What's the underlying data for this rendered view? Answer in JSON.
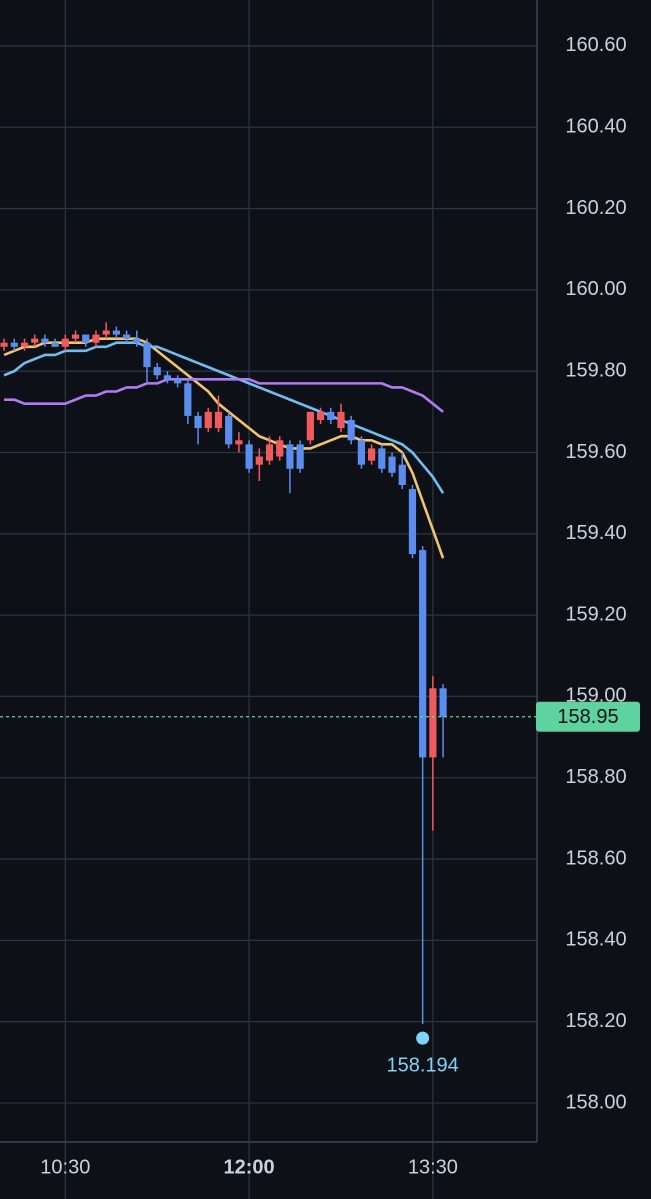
{
  "chart_data": {
    "type": "candlestick",
    "x": [
      "10:00",
      "10:05",
      "10:10",
      "10:15",
      "10:20",
      "10:25",
      "10:30",
      "10:35",
      "10:40",
      "10:45",
      "10:50",
      "10:55",
      "11:00",
      "11:05",
      "11:10",
      "11:15",
      "11:20",
      "11:25",
      "11:30",
      "11:35",
      "11:40",
      "11:45",
      "11:50",
      "11:55",
      "12:00",
      "12:05",
      "12:10",
      "12:15",
      "12:20",
      "12:25",
      "12:30",
      "12:35",
      "12:40",
      "12:45",
      "12:50",
      "12:55",
      "13:00",
      "13:05",
      "13:10",
      "13:15",
      "13:20",
      "13:25",
      "13:30",
      "13:35"
    ],
    "open": [
      159.86,
      159.87,
      159.86,
      159.87,
      159.88,
      159.87,
      159.86,
      159.88,
      159.89,
      159.87,
      159.89,
      159.9,
      159.89,
      159.88,
      159.87,
      159.81,
      159.79,
      159.78,
      159.77,
      159.69,
      159.66,
      159.66,
      159.69,
      159.62,
      159.62,
      159.57,
      159.58,
      159.59,
      159.62,
      159.62,
      159.63,
      159.68,
      159.7,
      159.66,
      159.68,
      159.63,
      159.58,
      159.61,
      159.59,
      159.57,
      159.51,
      159.36,
      158.85,
      159.02
    ],
    "high": [
      159.88,
      159.88,
      159.88,
      159.89,
      159.89,
      159.88,
      159.89,
      159.9,
      159.89,
      159.9,
      159.92,
      159.91,
      159.9,
      159.9,
      159.88,
      159.82,
      159.8,
      159.79,
      159.78,
      159.7,
      159.71,
      159.74,
      159.7,
      159.65,
      159.63,
      159.61,
      159.64,
      159.64,
      159.63,
      159.63,
      159.7,
      159.71,
      159.71,
      159.72,
      159.69,
      159.64,
      159.62,
      159.62,
      159.6,
      159.6,
      159.52,
      159.37,
      159.05,
      159.03
    ],
    "low": [
      159.85,
      159.85,
      159.85,
      159.86,
      159.86,
      159.86,
      159.85,
      159.87,
      159.86,
      159.86,
      159.88,
      159.88,
      159.87,
      159.86,
      159.77,
      159.78,
      159.77,
      159.76,
      159.67,
      159.62,
      159.65,
      159.65,
      159.61,
      159.6,
      159.55,
      159.53,
      159.57,
      159.58,
      159.5,
      159.55,
      159.62,
      159.67,
      159.67,
      159.65,
      159.62,
      159.56,
      159.57,
      159.55,
      159.54,
      159.51,
      159.34,
      158.194,
      158.67,
      158.85
    ],
    "close": [
      159.87,
      159.86,
      159.87,
      159.88,
      159.87,
      159.86,
      159.88,
      159.89,
      159.87,
      159.89,
      159.9,
      159.89,
      159.88,
      159.87,
      159.81,
      159.79,
      159.78,
      159.77,
      159.69,
      159.66,
      159.7,
      159.7,
      159.62,
      159.63,
      159.56,
      159.59,
      159.62,
      159.63,
      159.56,
      159.56,
      159.7,
      159.7,
      159.68,
      159.7,
      159.63,
      159.57,
      159.61,
      159.56,
      159.55,
      159.52,
      159.35,
      158.85,
      159.02,
      158.95
    ],
    "up_color": "#ef5a5f",
    "down_color": "#5b8def",
    "lines": [
      {
        "color": "#f2c46d",
        "values": [
          159.84,
          159.85,
          159.86,
          159.86,
          159.87,
          159.87,
          159.87,
          159.87,
          159.87,
          159.88,
          159.88,
          159.88,
          159.88,
          159.88,
          159.87,
          159.85,
          159.83,
          159.81,
          159.79,
          159.77,
          159.75,
          159.72,
          159.7,
          159.68,
          159.66,
          159.64,
          159.63,
          159.62,
          159.61,
          159.61,
          159.61,
          159.62,
          159.63,
          159.64,
          159.64,
          159.63,
          159.63,
          159.62,
          159.62,
          159.6,
          159.55,
          159.48,
          159.41,
          159.34
        ]
      },
      {
        "color": "#72bdf0",
        "values": [
          159.79,
          159.8,
          159.82,
          159.83,
          159.84,
          159.84,
          159.85,
          159.85,
          159.85,
          159.86,
          159.86,
          159.87,
          159.87,
          159.87,
          159.86,
          159.86,
          159.85,
          159.84,
          159.83,
          159.82,
          159.81,
          159.8,
          159.79,
          159.78,
          159.77,
          159.76,
          159.75,
          159.74,
          159.73,
          159.72,
          159.71,
          159.7,
          159.69,
          159.68,
          159.67,
          159.66,
          159.65,
          159.64,
          159.63,
          159.62,
          159.6,
          159.57,
          159.54,
          159.5
        ]
      },
      {
        "color": "#b07cf2",
        "values": [
          159.73,
          159.73,
          159.72,
          159.72,
          159.72,
          159.72,
          159.72,
          159.73,
          159.74,
          159.74,
          159.75,
          159.75,
          159.76,
          159.76,
          159.77,
          159.77,
          159.78,
          159.78,
          159.78,
          159.78,
          159.78,
          159.78,
          159.78,
          159.78,
          159.78,
          159.77,
          159.77,
          159.77,
          159.77,
          159.77,
          159.77,
          159.77,
          159.77,
          159.77,
          159.77,
          159.77,
          159.77,
          159.77,
          159.76,
          159.76,
          159.75,
          159.74,
          159.72,
          159.7
        ]
      }
    ],
    "xlim": [
      "09:58",
      "14:21"
    ],
    "xticks": [
      "10:30",
      "12:00",
      "13:30"
    ],
    "ylim": [
      157.904,
      160.713
    ],
    "yticks": [
      {
        "value": 158,
        "label": "158.00"
      },
      {
        "value": 158.2,
        "label": "158.20"
      },
      {
        "value": 158.4,
        "label": "158.40"
      },
      {
        "value": 158.6,
        "label": "158.60"
      },
      {
        "value": 158.8,
        "label": "158.80"
      },
      {
        "value": 159,
        "label": "159.00"
      },
      {
        "value": 159.2,
        "label": "159.20"
      },
      {
        "value": 159.4,
        "label": "159.40"
      },
      {
        "value": 159.6,
        "label": "159.60"
      },
      {
        "value": 159.8,
        "label": "159.80"
      },
      {
        "value": 160,
        "label": "160.00"
      },
      {
        "value": 160.2,
        "label": "160.20"
      },
      {
        "value": 160.4,
        "label": "160.40"
      },
      {
        "value": 160.6,
        "label": "160.60"
      }
    ],
    "grid": true,
    "last_price": 158.95,
    "last_price_color": "#5fd39f",
    "low_marker": {
      "x": "13:25",
      "value": 158.194,
      "color": "#7fd3f7"
    }
  }
}
